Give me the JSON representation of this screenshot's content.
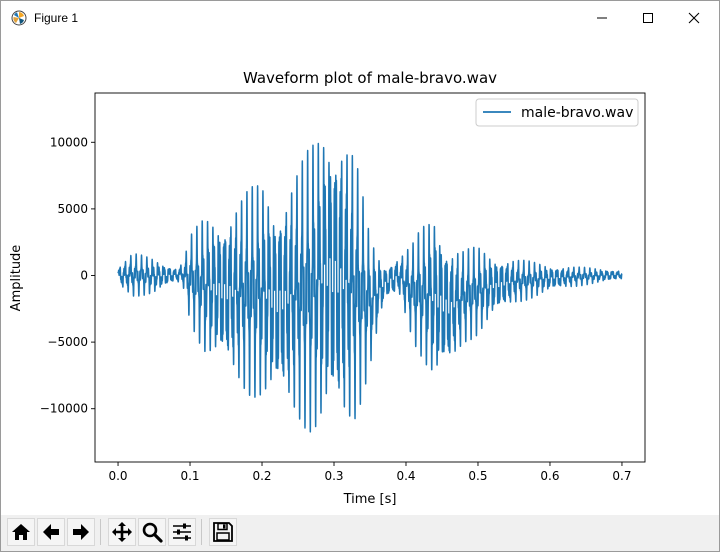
{
  "window": {
    "title": "Figure 1",
    "controls": {
      "minimize": "minimize",
      "maximize": "maximize",
      "close": "close"
    }
  },
  "toolbar": {
    "buttons": [
      {
        "name": "home-button",
        "icon": "home-icon"
      },
      {
        "name": "back-button",
        "icon": "arrow-left-icon"
      },
      {
        "name": "forward-button",
        "icon": "arrow-right-icon"
      },
      {
        "name": "pan-button",
        "icon": "move-icon"
      },
      {
        "name": "zoom-button",
        "icon": "magnifier-icon"
      },
      {
        "name": "configure-subplots-button",
        "icon": "sliders-icon"
      },
      {
        "name": "save-button",
        "icon": "floppy-icon"
      }
    ]
  },
  "chart_data": {
    "type": "line",
    "title": "Waveform plot of male-bravo.wav",
    "xlabel": "Time [s]",
    "ylabel": "Amplitude",
    "xlim": [
      -0.032,
      0.732
    ],
    "ylim": [
      -14000,
      13700
    ],
    "xticks": [
      0.0,
      0.1,
      0.2,
      0.3,
      0.4,
      0.5,
      0.6,
      0.7
    ],
    "xtick_labels": [
      "0.0",
      "0.1",
      "0.2",
      "0.3",
      "0.4",
      "0.5",
      "0.6",
      "0.7"
    ],
    "yticks": [
      -10000,
      -5000,
      0,
      5000,
      10000
    ],
    "ytick_labels": [
      "−10000",
      "−5000",
      "0",
      "5000",
      "10000"
    ],
    "legend_position": "top-right",
    "grid": false,
    "series": [
      {
        "name": "male-bravo.wav",
        "color": "#1f77b4",
        "x": [
          0.0,
          0.02,
          0.05,
          0.08,
          0.09,
          0.1,
          0.12,
          0.15,
          0.18,
          0.2,
          0.22,
          0.25,
          0.27,
          0.29,
          0.31,
          0.33,
          0.35,
          0.37,
          0.39,
          0.41,
          0.42,
          0.44,
          0.46,
          0.48,
          0.5,
          0.52,
          0.55,
          0.6,
          0.65,
          0.7
        ],
        "envelope_max": [
          700,
          1700,
          1300,
          600,
          1000,
          3000,
          4500,
          5000,
          6500,
          7200,
          6000,
          8200,
          10000,
          12300,
          11800,
          9000,
          3000,
          800,
          1500,
          2500,
          3500,
          5000,
          2600,
          2000,
          2200,
          1600,
          1300,
          800,
          600,
          400
        ],
        "envelope_min": [
          -800,
          -1600,
          -1400,
          -500,
          -800,
          -3500,
          -6000,
          -7500,
          -9000,
          -9500,
          -10000,
          -11000,
          -12000,
          -11800,
          -12500,
          -11000,
          -7000,
          -2000,
          -1500,
          -5000,
          -6000,
          -8500,
          -7500,
          -5200,
          -4500,
          -3200,
          -2200,
          -1200,
          -700,
          -300
        ],
        "dominant_frequency_hz": 130
      }
    ]
  }
}
